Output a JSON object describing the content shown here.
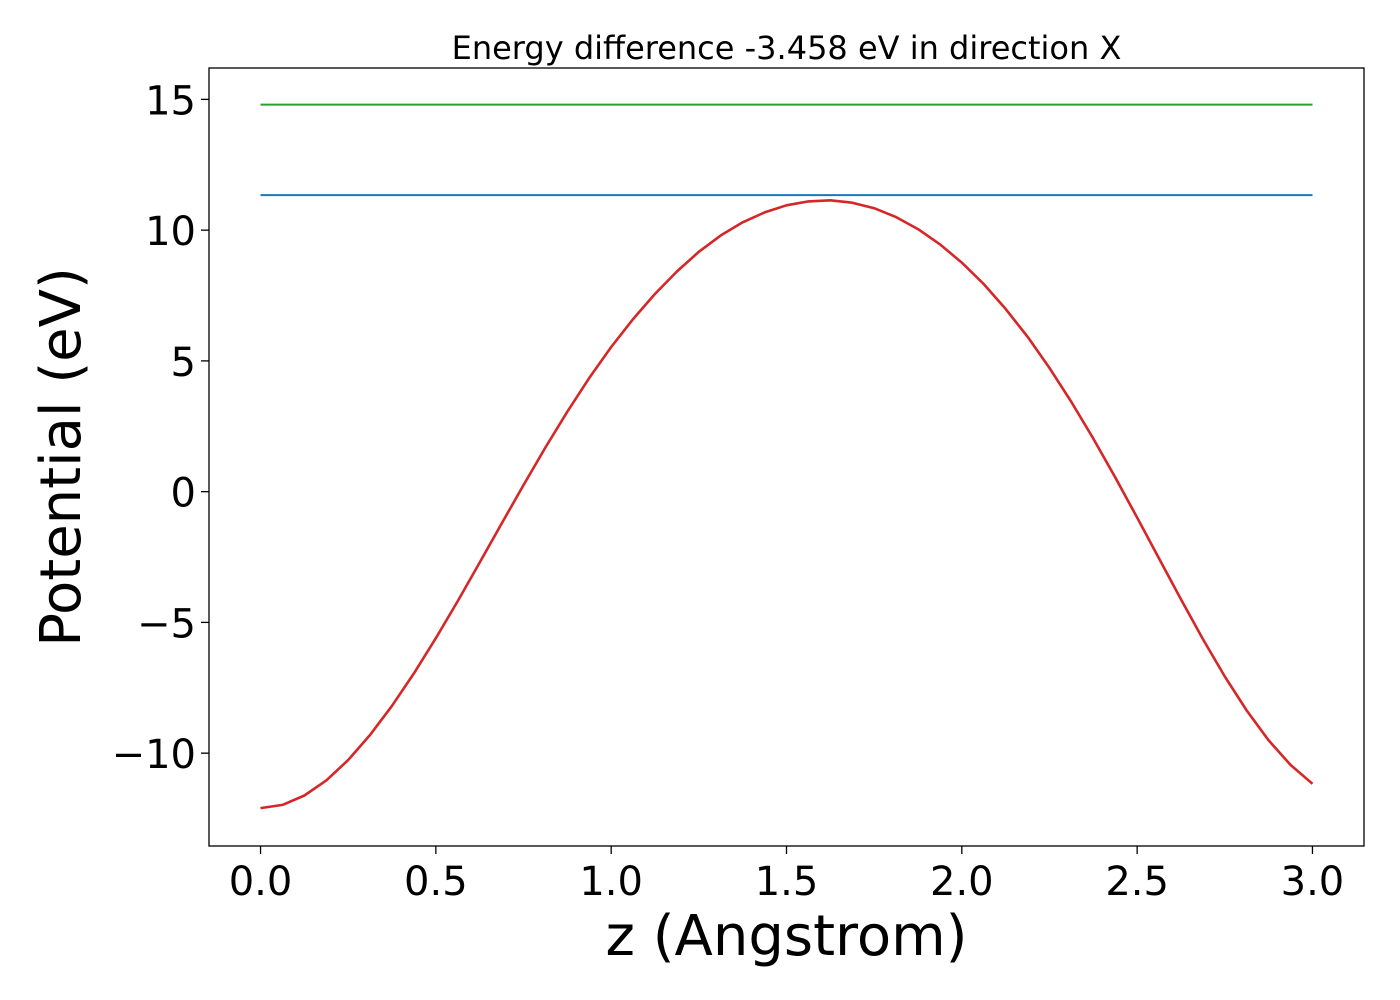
{
  "chart_data": {
    "type": "line",
    "title": "Energy difference -3.458 eV in direction X",
    "xlabel": "z (Angstrom)",
    "ylabel": "Potential (eV)",
    "xlim": [
      -0.147,
      3.147
    ],
    "ylim": [
      -13.55,
      16.2
    ],
    "xticks": [
      0.0,
      0.5,
      1.0,
      1.5,
      2.0,
      2.5,
      3.0
    ],
    "xtick_labels": [
      "0.0",
      "0.5",
      "1.0",
      "1.5",
      "2.0",
      "2.5",
      "3.0"
    ],
    "yticks": [
      -10,
      -5,
      0,
      5,
      10,
      15
    ],
    "ytick_labels": [
      "−10",
      "−5",
      "0",
      "5",
      "10",
      "15"
    ],
    "grid": false,
    "legend": "none",
    "series": [
      {
        "color": "#2ca02c",
        "x": [
          0.0,
          3.0
        ],
        "y": [
          14.8,
          14.8
        ]
      },
      {
        "color": "#1f77b4",
        "x": [
          0.0,
          3.0
        ],
        "y": [
          11.34,
          11.34
        ]
      },
      {
        "color": "#d62728",
        "x": [
          0.0,
          0.0625,
          0.125,
          0.1875,
          0.25,
          0.3125,
          0.375,
          0.4375,
          0.5,
          0.5625,
          0.625,
          0.6875,
          0.75,
          0.8125,
          0.875,
          0.9375,
          1.0,
          1.0625,
          1.125,
          1.1875,
          1.25,
          1.3125,
          1.375,
          1.4375,
          1.5,
          1.5625,
          1.625,
          1.6875,
          1.75,
          1.8125,
          1.875,
          1.9375,
          2.0,
          2.0625,
          2.125,
          2.1875,
          2.25,
          2.3125,
          2.375,
          2.4375,
          2.5,
          2.5625,
          2.625,
          2.6875,
          2.75,
          2.8125,
          2.875,
          2.9375,
          3.0
        ],
        "y": [
          -12.1,
          -11.98,
          -11.62,
          -11.04,
          -10.26,
          -9.3,
          -8.19,
          -6.95,
          -5.6,
          -4.18,
          -2.71,
          -1.22,
          0.25,
          1.69,
          3.06,
          4.35,
          5.53,
          6.6,
          7.56,
          8.42,
          9.17,
          9.8,
          10.3,
          10.68,
          10.95,
          11.1,
          11.14,
          11.05,
          10.84,
          10.5,
          10.04,
          9.46,
          8.76,
          7.94,
          6.99,
          5.92,
          4.73,
          3.43,
          2.03,
          0.55,
          -0.99,
          -2.56,
          -4.12,
          -5.64,
          -7.07,
          -8.37,
          -9.51,
          -10.45,
          -11.17
        ]
      }
    ]
  }
}
